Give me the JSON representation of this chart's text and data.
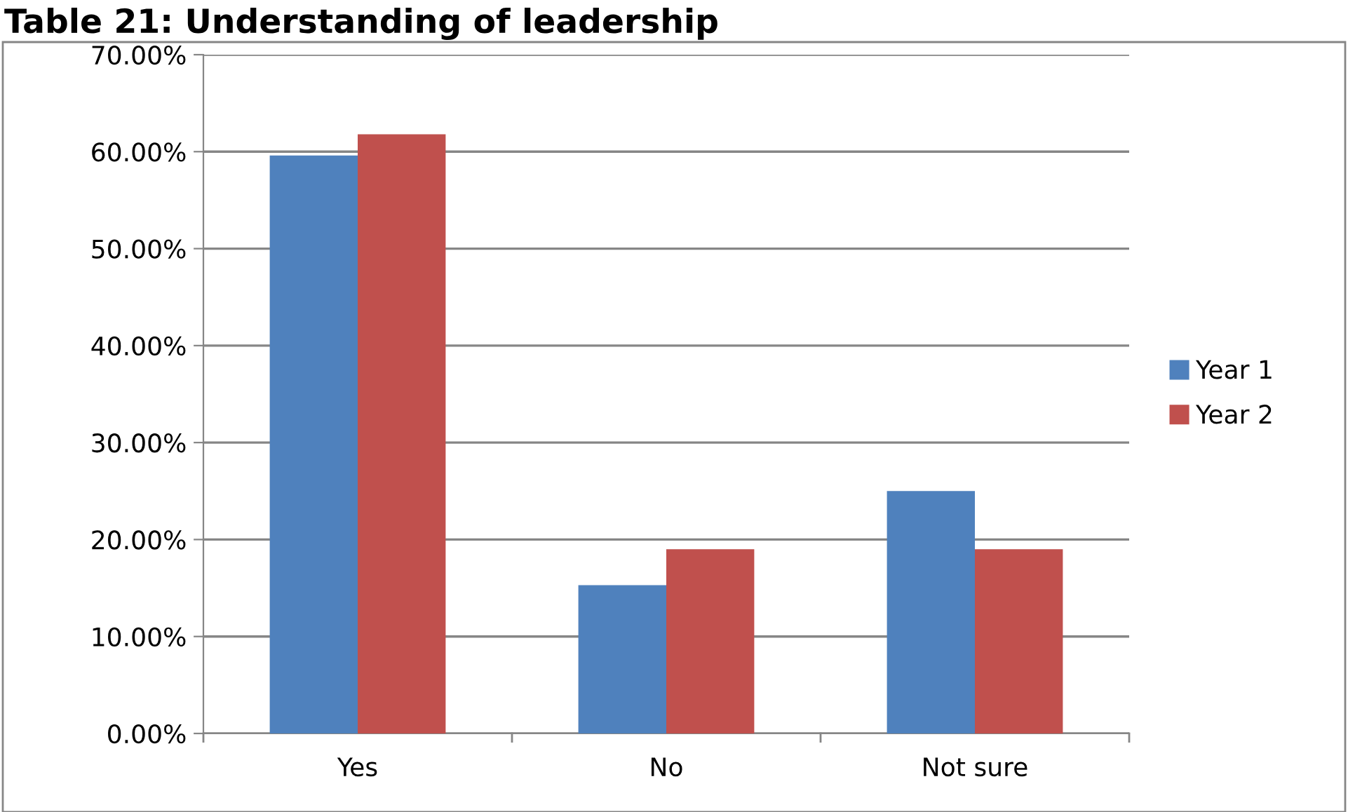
{
  "chart_data": {
    "type": "bar",
    "title": "Table 21: Understanding of leadership",
    "categories": [
      "Yes",
      "No",
      "Not sure"
    ],
    "series": [
      {
        "name": "Year 1",
        "color": "#4f81bd",
        "values": [
          59.6,
          15.3,
          25.0
        ]
      },
      {
        "name": "Year 2",
        "color": "#c0504d",
        "values": [
          61.8,
          19.0,
          19.0
        ]
      }
    ],
    "ylim": [
      0,
      70
    ],
    "yticks": [
      {
        "value": 0,
        "label": "0.00%"
      },
      {
        "value": 10,
        "label": "10.00%"
      },
      {
        "value": 20,
        "label": "20.00%"
      },
      {
        "value": 30,
        "label": "30.00%"
      },
      {
        "value": 40,
        "label": "40.00%"
      },
      {
        "value": 50,
        "label": "50.00%"
      },
      {
        "value": 60,
        "label": "60.00%"
      },
      {
        "value": 70,
        "label": "70.00%"
      }
    ],
    "grid": "y",
    "legend": "right"
  }
}
